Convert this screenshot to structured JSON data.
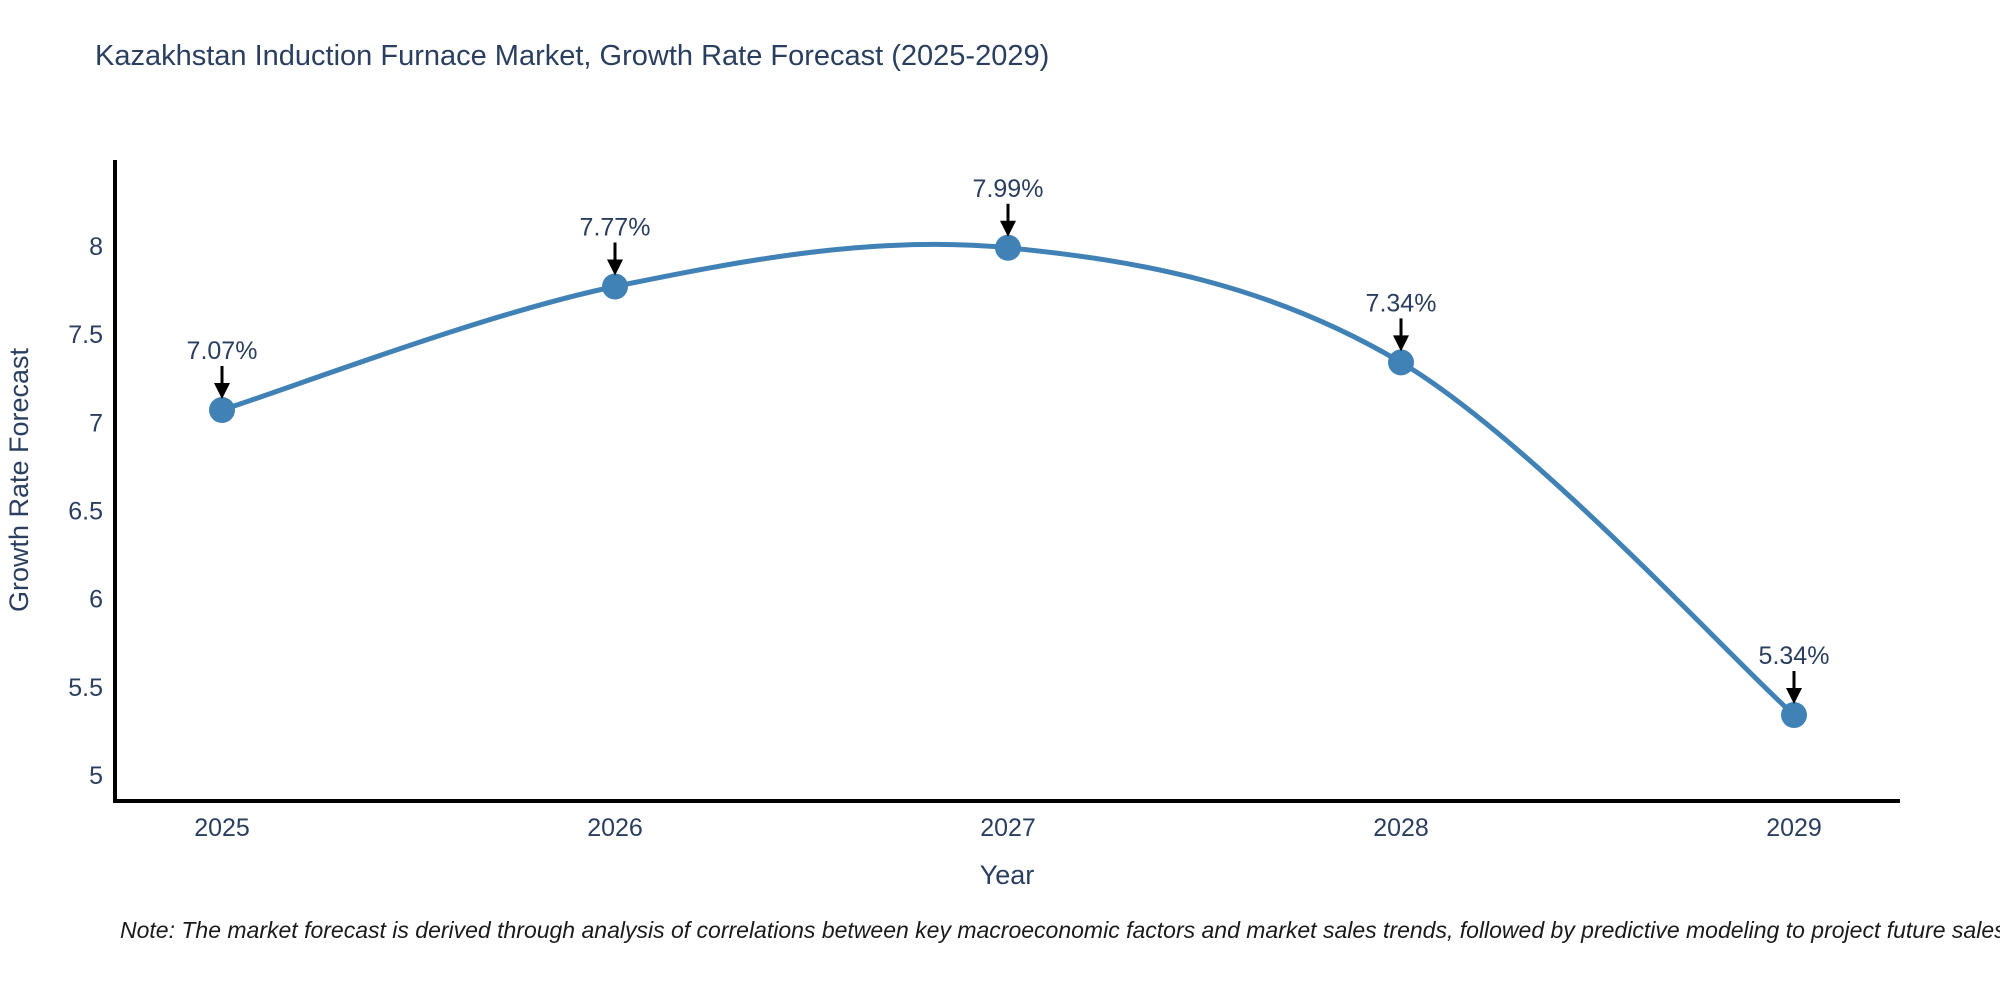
{
  "title": "Kazakhstan Induction Furnace Market, Growth Rate Forecast (2025-2029)",
  "note": "Note: The market forecast is derived through analysis of correlations between key macroeconomic factors and market sales trends, followed by predictive modeling to project future sales",
  "chart_data": {
    "type": "line",
    "line_shape": "spline",
    "title": "Kazakhstan Induction Furnace Market, Growth Rate Forecast (2025-2029)",
    "categories": [
      "2025",
      "2026",
      "2027",
      "2028",
      "2029"
    ],
    "series": [
      {
        "name": "Growth Rate Forecast",
        "values": [
          7.07,
          7.77,
          7.99,
          7.34,
          5.34
        ],
        "point_labels": [
          "7.07%",
          "7.77%",
          "7.99%",
          "7.34%",
          "5.34%"
        ]
      }
    ],
    "xlabel": "Year",
    "ylabel": "Growth Rate Forecast",
    "yticks": [
      5,
      5.5,
      6,
      6.5,
      7,
      7.5,
      8
    ],
    "ylim": [
      4.85,
      8.49
    ],
    "grid": false,
    "legend": false,
    "annotations": "black down-arrows from each percentage label to its data point",
    "colors": {
      "line": "#4182b6",
      "marker": "#4182b6",
      "axis_line": "#000000",
      "tick_text": "#2a3f5f",
      "title_text": "#2a3f5f",
      "arrow": "#000000",
      "note_text": "#1a1a1a",
      "background": "#ffffff"
    }
  }
}
